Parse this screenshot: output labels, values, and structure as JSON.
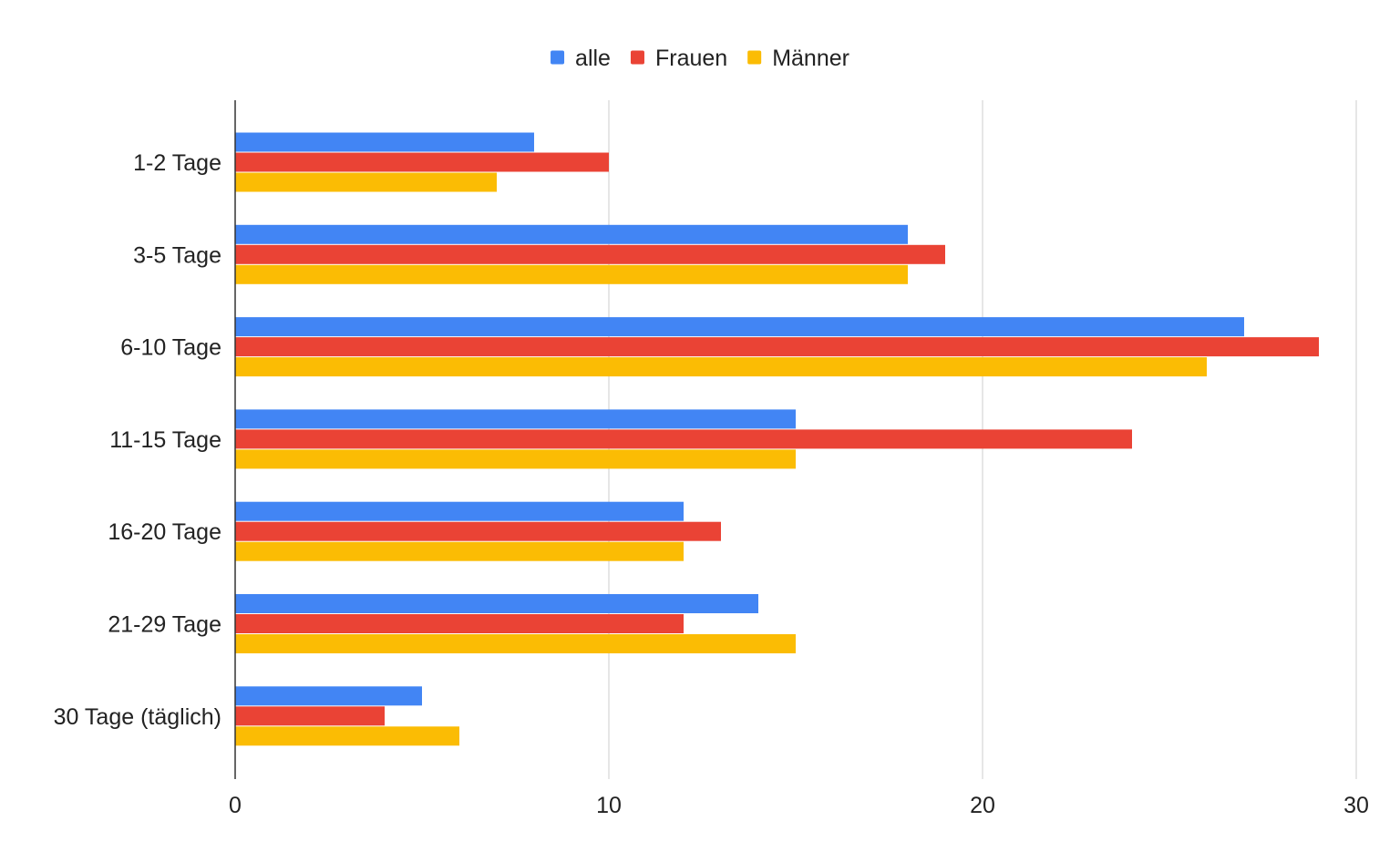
{
  "chart_data": {
    "type": "bar",
    "orientation": "horizontal",
    "categories": [
      "1-2 Tage",
      "3-5 Tage",
      "6-10 Tage",
      "11-15 Tage",
      "16-20 Tage",
      "21-29 Tage",
      "30 Tage (täglich)"
    ],
    "series": [
      {
        "name": "alle",
        "color": "#4285F4",
        "values": [
          8,
          18,
          27,
          15,
          12,
          14,
          5
        ]
      },
      {
        "name": "Frauen",
        "color": "#EA4335",
        "values": [
          10,
          19,
          29,
          24,
          13,
          12,
          4
        ]
      },
      {
        "name": "Männer",
        "color": "#FBBC04",
        "values": [
          7,
          18,
          26,
          15,
          12,
          15,
          6
        ]
      }
    ],
    "xlim": [
      0,
      30
    ],
    "xticks": [
      0,
      10,
      20,
      30
    ],
    "xtick_labels": [
      "0",
      "10",
      "20",
      "30"
    ],
    "grid": true,
    "legend_position": "top-center"
  }
}
